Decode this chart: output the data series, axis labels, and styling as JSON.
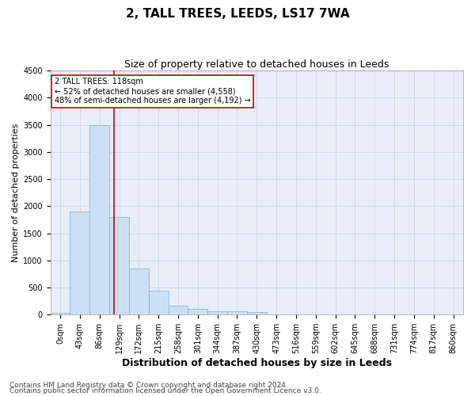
{
  "title": "2, TALL TREES, LEEDS, LS17 7WA",
  "subtitle": "Size of property relative to detached houses in Leeds",
  "xlabel": "Distribution of detached houses by size in Leeds",
  "ylabel": "Number of detached properties",
  "bar_labels": [
    "0sqm",
    "43sqm",
    "86sqm",
    "129sqm",
    "172sqm",
    "215sqm",
    "258sqm",
    "301sqm",
    "344sqm",
    "387sqm",
    "430sqm",
    "473sqm",
    "516sqm",
    "559sqm",
    "602sqm",
    "645sqm",
    "688sqm",
    "731sqm",
    "774sqm",
    "817sqm",
    "860sqm"
  ],
  "bar_values": [
    30,
    1900,
    3500,
    1800,
    850,
    450,
    160,
    100,
    70,
    60,
    50,
    5,
    0,
    0,
    0,
    0,
    0,
    0,
    0,
    0,
    0
  ],
  "bar_color": "#cce0f5",
  "bar_edge_color": "#7aadd4",
  "marker_color": "#cc0000",
  "ylim": [
    0,
    4500
  ],
  "yticks": [
    0,
    500,
    1000,
    1500,
    2000,
    2500,
    3000,
    3500,
    4000,
    4500
  ],
  "annotation_text": "2 TALL TREES: 118sqm\n← 52% of detached houses are smaller (4,558)\n48% of semi-detached houses are larger (4,192) →",
  "annotation_box_color": "#ffffff",
  "annotation_box_edge": "#cc0000",
  "footer_line1": "Contains HM Land Registry data © Crown copyright and database right 2024.",
  "footer_line2": "Contains public sector information licensed under the Open Government Licence v3.0.",
  "title_fontsize": 11,
  "subtitle_fontsize": 9,
  "axis_label_fontsize": 8,
  "tick_fontsize": 7,
  "annotation_fontsize": 7,
  "footer_fontsize": 6.5,
  "background_color": "#ffffff",
  "plot_bg_color": "#e8eef8",
  "grid_color": "#c8d4e8"
}
